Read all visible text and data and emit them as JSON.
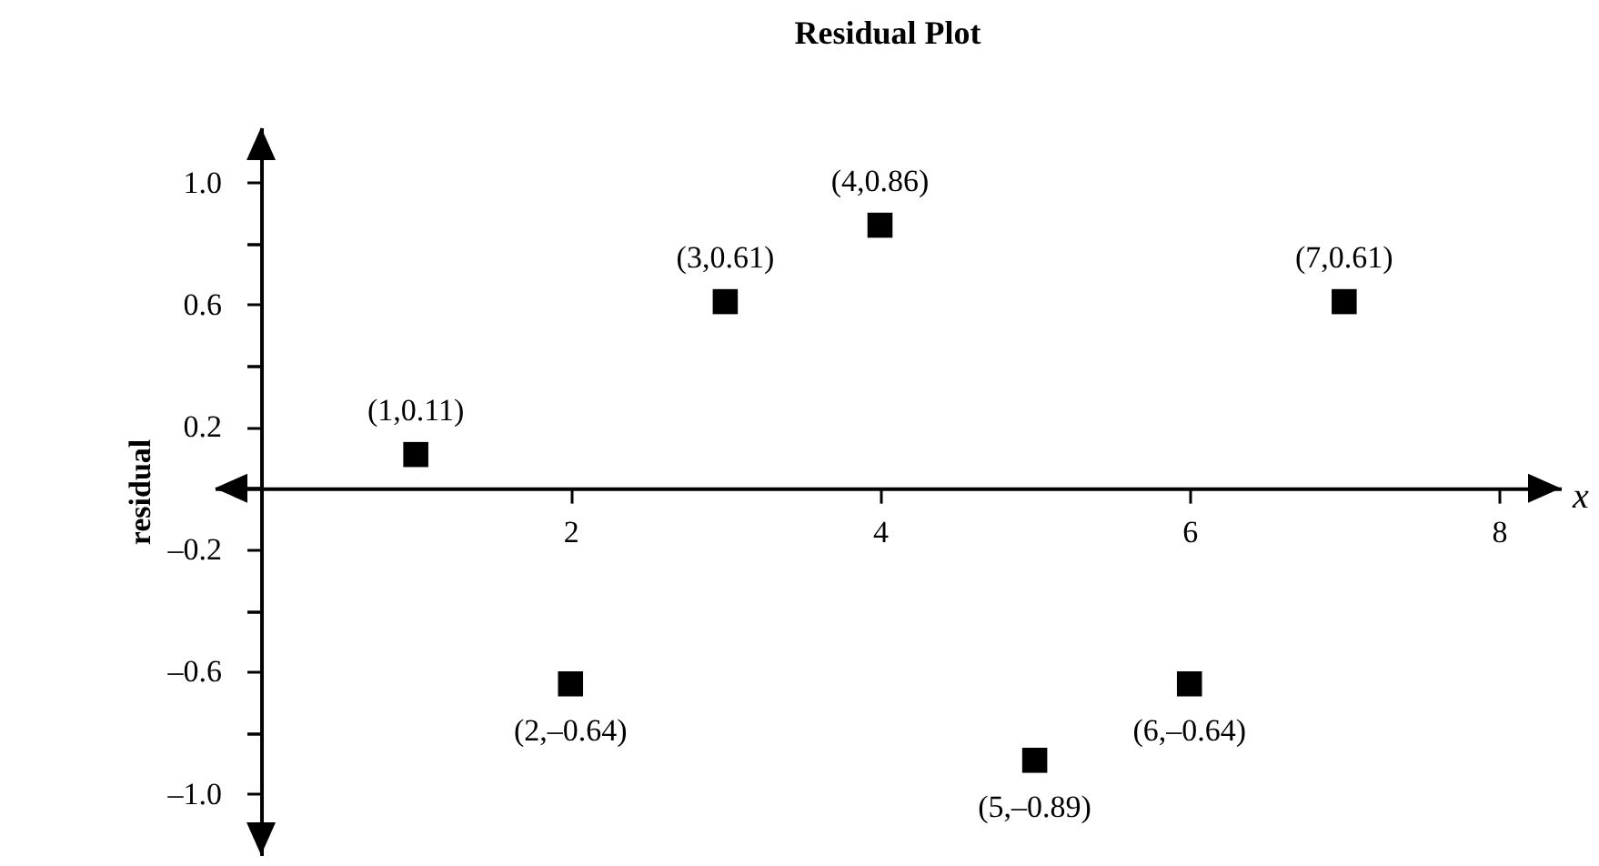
{
  "chart_data": {
    "type": "scatter",
    "title": "Residual Plot",
    "xlabel": "x",
    "ylabel": "residual",
    "x": [
      1,
      2,
      3,
      4,
      5,
      6,
      7
    ],
    "values": [
      0.11,
      -0.64,
      0.61,
      0.86,
      -0.89,
      -0.64,
      0.61
    ],
    "value_labels": [
      "(1,0.11)",
      "(2,–0.64)",
      "(3,0.61)",
      "(4,0.86)",
      "(5,–0.89)",
      "(6,–0.64)",
      "(7,0.61)"
    ],
    "color": "#000000",
    "marker": "square",
    "grid": false,
    "xlim": [
      -0.3,
      8.4
    ],
    "xticks": [
      2,
      4,
      6,
      8
    ],
    "ylim": [
      -1.2,
      1.18
    ],
    "yticks": [
      {
        "value": -1,
        "label": "–1.0"
      },
      {
        "value": -0.8,
        "label": null
      },
      {
        "value": -0.6,
        "label": "–0.6"
      },
      {
        "value": -0.4,
        "label": null
      },
      {
        "value": -0.2,
        "label": "–0.2"
      },
      {
        "value": 0,
        "label": null
      },
      {
        "value": 0.2,
        "label": "0.2"
      },
      {
        "value": 0.4,
        "label": null
      },
      {
        "value": 0.6,
        "label": "0.6"
      },
      {
        "value": 0.8,
        "label": null
      },
      {
        "value": 1,
        "label": "1.0"
      }
    ]
  }
}
